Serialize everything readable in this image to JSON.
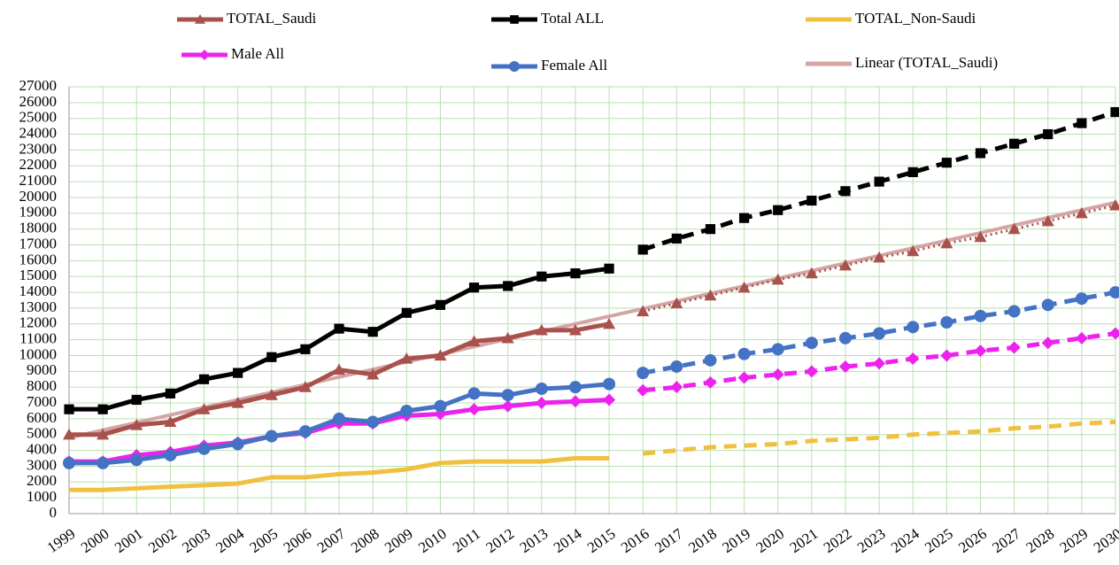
{
  "chart_data": {
    "type": "line",
    "categories": [
      "1999",
      "2000",
      "2001",
      "2002",
      "2003",
      "2004",
      "2005",
      "2006",
      "2007",
      "2008",
      "2009",
      "2010",
      "2011",
      "2012",
      "2013",
      "2014",
      "2015",
      "2016",
      "2017",
      "2018",
      "2019",
      "2020",
      "2021",
      "2022",
      "2023",
      "2024",
      "2025",
      "2026",
      "2027",
      "2028",
      "2029",
      "2030"
    ],
    "ylim": [
      0,
      27000
    ],
    "yticks": [
      0,
      1000,
      2000,
      3000,
      4000,
      5000,
      6000,
      7000,
      8000,
      9000,
      10000,
      11000,
      12000,
      13000,
      14000,
      15000,
      16000,
      17000,
      18000,
      19000,
      20000,
      21000,
      22000,
      23000,
      24000,
      25000,
      26000,
      27000
    ],
    "grid": true,
    "series": [
      {
        "name": "TOTAL_Saudi",
        "color": "#a9514d",
        "marker": "triangle",
        "projection_style": "dotted",
        "values": [
          5000,
          5000,
          5600,
          5800,
          6600,
          7000,
          7500,
          8000,
          9100,
          8800,
          9800,
          10000,
          10900,
          11100,
          11600,
          11600,
          12000,
          null,
          null,
          null,
          null,
          null,
          null,
          null,
          null,
          null,
          null,
          null,
          null,
          null,
          null,
          null
        ],
        "projection": [
          null,
          null,
          null,
          null,
          null,
          null,
          null,
          null,
          null,
          null,
          null,
          null,
          null,
          null,
          null,
          null,
          null,
          12800,
          13300,
          13800,
          14300,
          14800,
          15200,
          15700,
          16200,
          16600,
          17100,
          17500,
          18000,
          18500,
          19000,
          19500
        ]
      },
      {
        "name": "Total ALL",
        "color": "#000000",
        "marker": "square",
        "projection_style": "dashed",
        "values": [
          6600,
          6600,
          7200,
          7600,
          8500,
          8900,
          9900,
          10400,
          11700,
          11500,
          12700,
          13200,
          14300,
          14400,
          15000,
          15200,
          15500,
          null,
          null,
          null,
          null,
          null,
          null,
          null,
          null,
          null,
          null,
          null,
          null,
          null,
          null,
          null
        ],
        "projection": [
          null,
          null,
          null,
          null,
          null,
          null,
          null,
          null,
          null,
          null,
          null,
          null,
          null,
          null,
          null,
          null,
          null,
          16700,
          17400,
          18000,
          18700,
          19200,
          19800,
          20400,
          21000,
          21600,
          22200,
          22800,
          23400,
          24000,
          24700,
          25400
        ]
      },
      {
        "name": "TOTAL_Non-Saudi",
        "color": "#f0c040",
        "marker": "none",
        "projection_style": "dashed",
        "values": [
          1500,
          1500,
          1600,
          1700,
          1800,
          1900,
          2300,
          2300,
          2500,
          2600,
          2800,
          3200,
          3300,
          3300,
          3300,
          3500,
          3500,
          null,
          null,
          null,
          null,
          null,
          null,
          null,
          null,
          null,
          null,
          null,
          null,
          null,
          null,
          null
        ],
        "projection": [
          null,
          null,
          null,
          null,
          null,
          null,
          null,
          null,
          null,
          null,
          null,
          null,
          null,
          null,
          null,
          null,
          null,
          3800,
          4000,
          4200,
          4300,
          4400,
          4600,
          4700,
          4800,
          5000,
          5100,
          5200,
          5400,
          5500,
          5700,
          5800
        ]
      },
      {
        "name": "Male All",
        "color": "#ee22ee",
        "marker": "diamond",
        "projection_style": "dashed",
        "values": [
          3300,
          3300,
          3700,
          3900,
          4300,
          4500,
          4900,
          5100,
          5700,
          5700,
          6200,
          6300,
          6600,
          6800,
          7000,
          7100,
          7200,
          null,
          null,
          null,
          null,
          null,
          null,
          null,
          null,
          null,
          null,
          null,
          null,
          null,
          null,
          null
        ],
        "projection": [
          null,
          null,
          null,
          null,
          null,
          null,
          null,
          null,
          null,
          null,
          null,
          null,
          null,
          null,
          null,
          null,
          null,
          7800,
          8000,
          8300,
          8600,
          8800,
          9000,
          9300,
          9500,
          9800,
          10000,
          10300,
          10500,
          10800,
          11100,
          11400
        ]
      },
      {
        "name": "Female All",
        "color": "#4472c4",
        "marker": "circle",
        "projection_style": "dashed",
        "values": [
          3200,
          3200,
          3400,
          3700,
          4100,
          4400,
          4900,
          5200,
          6000,
          5800,
          6500,
          6800,
          7600,
          7500,
          7900,
          8000,
          8200,
          null,
          null,
          null,
          null,
          null,
          null,
          null,
          null,
          null,
          null,
          null,
          null,
          null,
          null,
          null
        ],
        "projection": [
          null,
          null,
          null,
          null,
          null,
          null,
          null,
          null,
          null,
          null,
          null,
          null,
          null,
          null,
          null,
          null,
          null,
          8900,
          9300,
          9700,
          10100,
          10400,
          10800,
          11100,
          11400,
          11800,
          12100,
          12500,
          12800,
          13200,
          13600,
          14000
        ]
      },
      {
        "name": "Linear (TOTAL_Saudi)",
        "color": "#d4a5a5",
        "marker": "none",
        "values": [
          4800,
          5280,
          5760,
          6240,
          6720,
          7200,
          7680,
          8160,
          8640,
          9120,
          9600,
          10080,
          10560,
          11040,
          11520,
          12000,
          12480,
          12960,
          13440,
          13920,
          14400,
          14880,
          15360,
          15840,
          16320,
          16800,
          17280,
          17760,
          18240,
          18720,
          19200,
          19680
        ]
      }
    ]
  }
}
